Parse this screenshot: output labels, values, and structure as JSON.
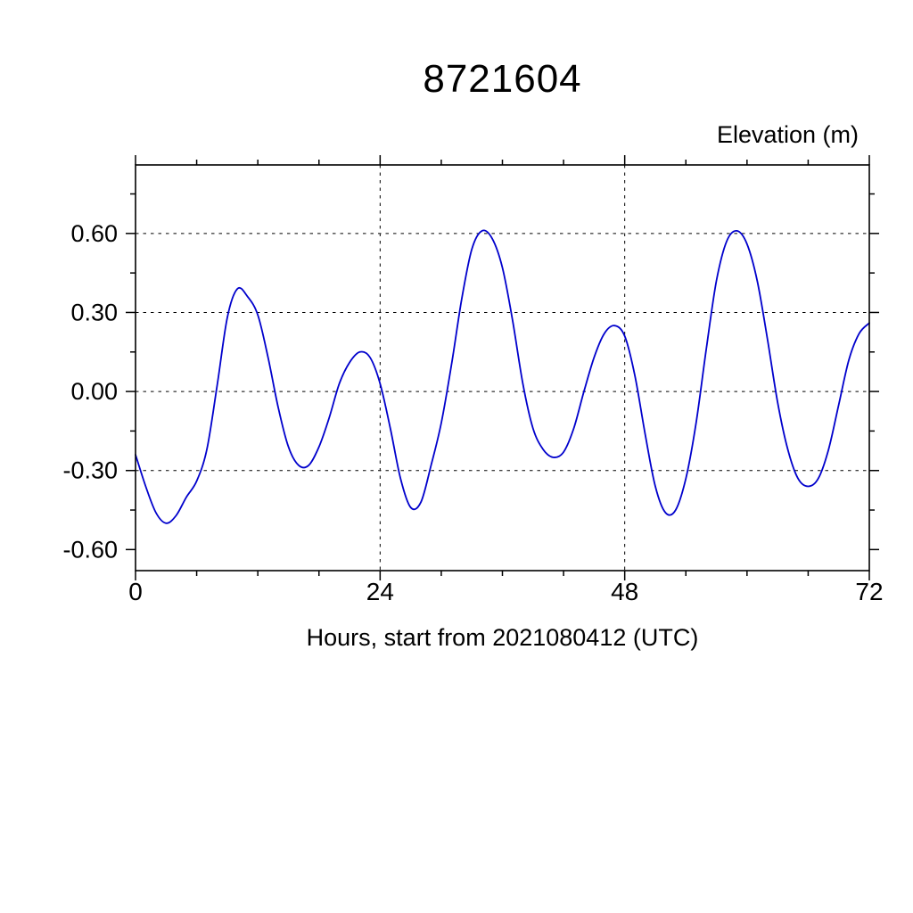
{
  "page": {
    "background": "#ffffff"
  },
  "chart_data": {
    "type": "line",
    "title": "8721604",
    "ylabel": "Elevation (m)",
    "xlabel": "Hours, start from 2021080412 (UTC)",
    "line_color": "#0000cc",
    "grid_style": "dashed",
    "grid_color": "#000000",
    "xlim": [
      0,
      72
    ],
    "ylim": [
      -0.68,
      0.86
    ],
    "xticks": {
      "major": [
        0,
        24,
        48,
        72
      ],
      "labels": [
        "0",
        "24",
        "48",
        "72"
      ],
      "minor_interval": 6
    },
    "yticks": {
      "major": [
        -0.6,
        -0.3,
        0.0,
        0.3,
        0.6
      ],
      "labels": [
        "-0.60",
        "-0.30",
        "0.00",
        "0.30",
        "0.60"
      ],
      "minor_interval": 0.15
    },
    "grid_x": [
      24,
      48
    ],
    "grid_y": [
      -0.3,
      0.0,
      0.3,
      0.6
    ],
    "x": [
      0,
      1,
      2,
      3,
      4,
      5,
      6,
      7,
      8,
      9,
      10,
      11,
      12,
      13,
      14,
      15,
      16,
      17,
      18,
      19,
      20,
      21,
      22,
      23,
      24,
      25,
      26,
      27,
      28,
      29,
      30,
      31,
      32,
      33,
      34,
      35,
      36,
      37,
      38,
      39,
      40,
      41,
      42,
      43,
      44,
      45,
      46,
      47,
      48,
      49,
      50,
      51,
      52,
      53,
      54,
      55,
      56,
      57,
      58,
      59,
      60,
      61,
      62,
      63,
      64,
      65,
      66,
      67,
      68,
      69,
      70,
      71,
      72
    ],
    "series": [
      {
        "name": "elevation",
        "color": "#0000cc",
        "values": [
          -0.24,
          -0.36,
          -0.46,
          -0.5,
          -0.47,
          -0.4,
          -0.34,
          -0.22,
          0.02,
          0.28,
          0.39,
          0.36,
          0.29,
          0.13,
          -0.06,
          -0.21,
          -0.28,
          -0.28,
          -0.21,
          -0.1,
          0.03,
          0.11,
          0.15,
          0.13,
          0.03,
          -0.14,
          -0.33,
          -0.44,
          -0.42,
          -0.28,
          -0.12,
          0.1,
          0.35,
          0.54,
          0.61,
          0.58,
          0.47,
          0.27,
          0.03,
          -0.14,
          -0.22,
          -0.25,
          -0.23,
          -0.14,
          0.0,
          0.13,
          0.22,
          0.25,
          0.21,
          0.06,
          -0.16,
          -0.36,
          -0.46,
          -0.45,
          -0.33,
          -0.12,
          0.16,
          0.42,
          0.57,
          0.61,
          0.56,
          0.42,
          0.2,
          -0.04,
          -0.22,
          -0.33,
          -0.36,
          -0.33,
          -0.22,
          -0.05,
          0.12,
          0.22,
          0.26
        ]
      }
    ]
  }
}
